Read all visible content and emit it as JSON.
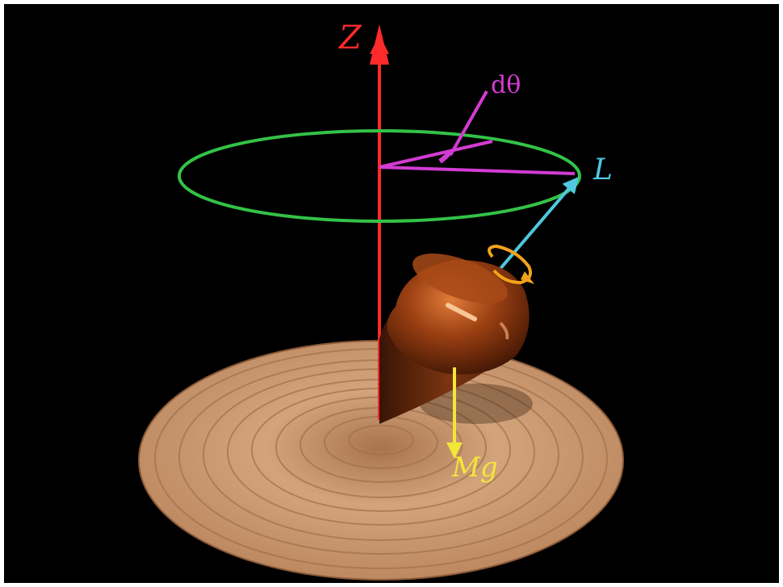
{
  "labels": {
    "z_axis": "Z",
    "angle": "dθ",
    "angular_momentum": "L",
    "gravity": "Mg"
  },
  "colors": {
    "background": "#000000",
    "frame": "#ffffff",
    "z_axis": "#ff2a2a",
    "angle": "#d23cd2",
    "precession_circle": "#33c247",
    "angular_momentum": "#4fc8e0",
    "spin_arrow": "#f2a21a",
    "gravity": "#f2e638",
    "top_wood": "#8a3a10",
    "base_wood": "#c9976b"
  },
  "icons": {
    "top": "spinning-top-icon",
    "base": "wooden-disc-icon"
  }
}
